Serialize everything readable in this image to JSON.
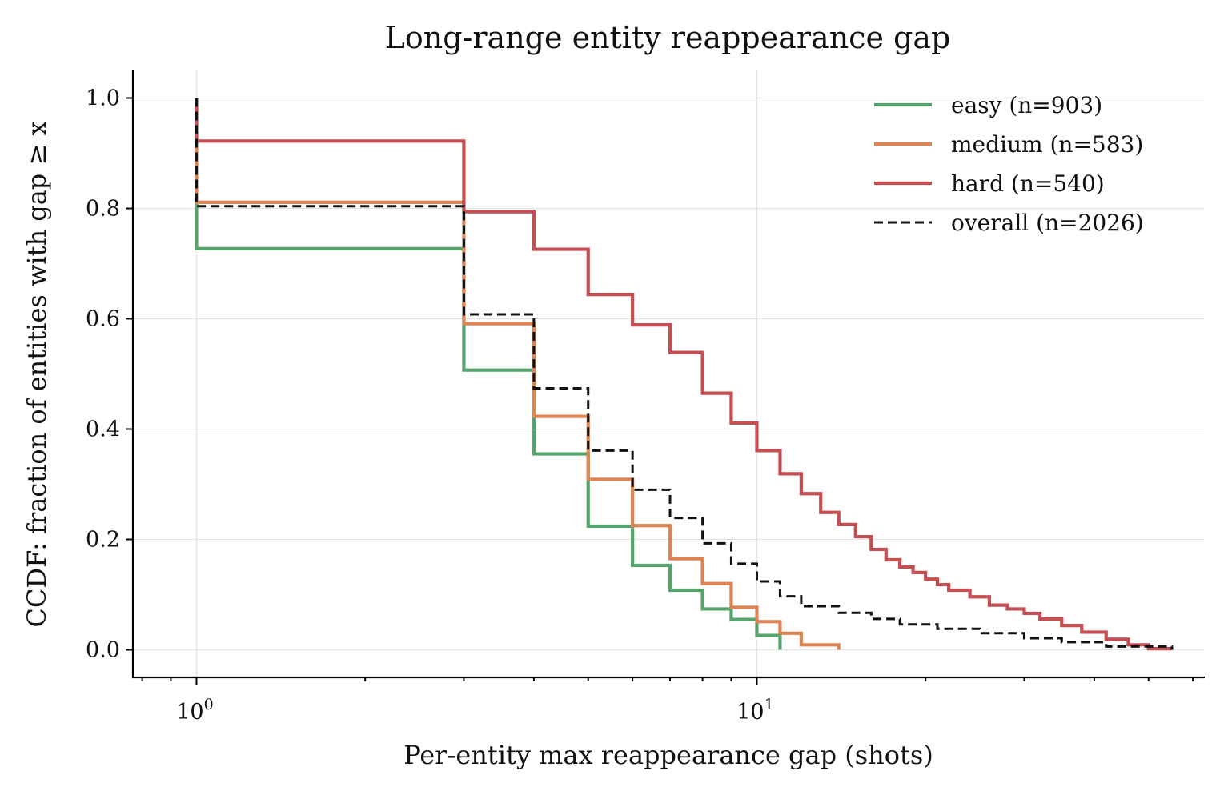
{
  "chart_data": {
    "type": "line",
    "step": "post",
    "title": "Long-range entity reappearance gap",
    "xlabel": "Per-entity max reappearance gap (shots)",
    "ylabel": "CCDF: fraction of entities with gap ≥ x",
    "xscale": "log",
    "xlim": [
      0.77,
      63
    ],
    "ylim": [
      -0.05,
      1.05
    ],
    "x_ticks": [
      1,
      10
    ],
    "x_tick_labels": [
      {
        "base": "10",
        "exp": "0"
      },
      {
        "base": "10",
        "exp": "1"
      }
    ],
    "y_ticks": [
      "0.0",
      "0.2",
      "0.4",
      "0.6",
      "0.8",
      "1.0"
    ],
    "grid": true,
    "legend_position": "top-right",
    "series": [
      {
        "name": "easy (n=903)",
        "color": "#55a46b",
        "dash": false,
        "x": [
          1,
          2,
          3,
          4,
          5,
          6,
          7,
          8,
          9,
          10,
          11
        ],
        "y": [
          1.0,
          0.727,
          0.507,
          0.355,
          0.224,
          0.153,
          0.108,
          0.074,
          0.055,
          0.026,
          0.0
        ]
      },
      {
        "name": "medium (n=583)",
        "color": "#dd8452",
        "dash": false,
        "x": [
          1,
          2,
          3,
          4,
          5,
          6,
          7,
          8,
          9,
          10,
          11,
          12,
          14
        ],
        "y": [
          1.0,
          0.811,
          0.591,
          0.423,
          0.309,
          0.225,
          0.165,
          0.12,
          0.077,
          0.051,
          0.03,
          0.009,
          0.0
        ]
      },
      {
        "name": "hard (n=540)",
        "color": "#c44e52",
        "dash": false,
        "x": [
          1,
          2,
          3,
          4,
          5,
          6,
          7,
          8,
          9,
          10,
          11,
          12,
          13,
          14,
          15,
          16,
          17,
          18,
          19,
          20,
          21,
          22,
          24,
          26,
          28,
          30,
          32,
          35,
          38,
          42,
          46,
          50,
          55
        ],
        "y": [
          1.0,
          0.922,
          0.794,
          0.726,
          0.644,
          0.589,
          0.539,
          0.465,
          0.411,
          0.361,
          0.319,
          0.283,
          0.249,
          0.227,
          0.205,
          0.182,
          0.163,
          0.15,
          0.14,
          0.128,
          0.118,
          0.108,
          0.096,
          0.081,
          0.074,
          0.066,
          0.056,
          0.044,
          0.032,
          0.019,
          0.009,
          0.002,
          0.0
        ]
      },
      {
        "name": "overall (n=2026)",
        "color": "#111111",
        "dash": true,
        "x": [
          1,
          2,
          3,
          4,
          5,
          6,
          7,
          8,
          9,
          10,
          11,
          12,
          14,
          16,
          18,
          21,
          25,
          30,
          35,
          42,
          55
        ],
        "y": [
          1.0,
          0.804,
          0.608,
          0.474,
          0.361,
          0.29,
          0.239,
          0.193,
          0.156,
          0.124,
          0.097,
          0.079,
          0.067,
          0.056,
          0.046,
          0.038,
          0.03,
          0.021,
          0.014,
          0.006,
          0.0
        ]
      }
    ]
  }
}
